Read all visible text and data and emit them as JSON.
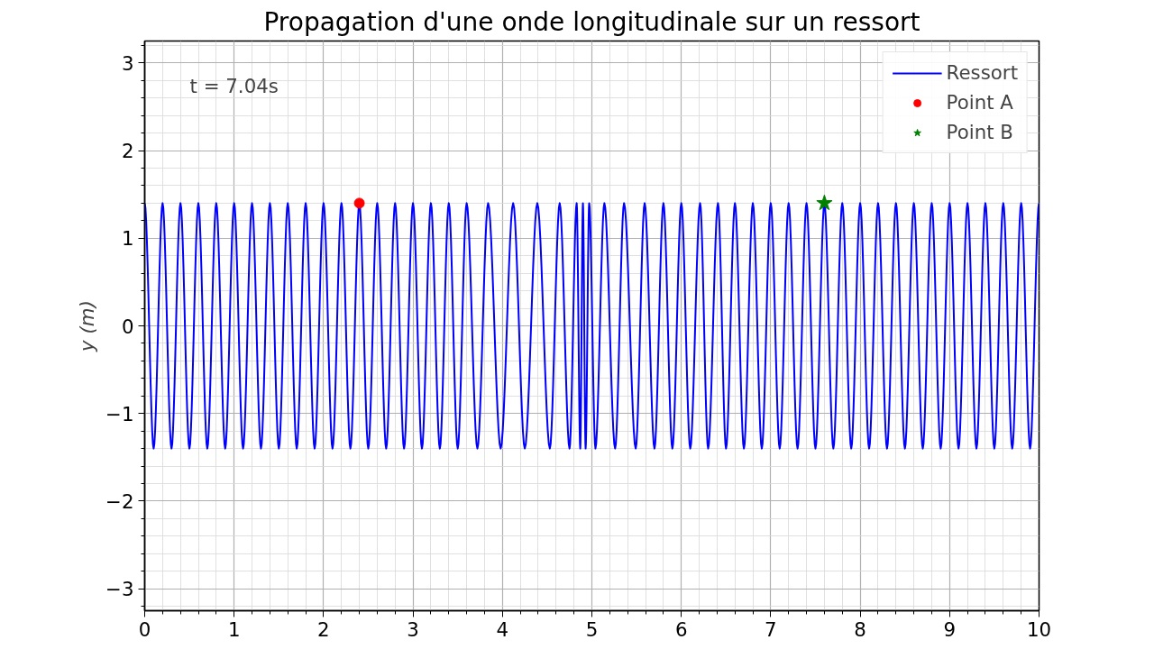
{
  "chart_data": {
    "type": "line",
    "title": "Propagation d'une onde longitudinale sur un ressort",
    "ylabel": "y (m)",
    "annotations": [
      "t = 7.04s"
    ],
    "xlim": [
      0,
      10
    ],
    "ylim": [
      -3.25,
      3.25
    ],
    "xticks": [
      0,
      1,
      2,
      3,
      4,
      5,
      6,
      7,
      8,
      9,
      10
    ],
    "yticks": [
      {
        "value": -3,
        "label": "−3"
      },
      {
        "value": -2,
        "label": "−2"
      },
      {
        "value": -1,
        "label": "−1"
      },
      0,
      1,
      2,
      3
    ],
    "grid": true,
    "legend": "top right",
    "series": [
      {
        "name": "Ressort",
        "color": "#0000ff",
        "marker": "none",
        "line_style": "solid",
        "x": [
          0,
          0.1,
          0.2,
          0.3,
          0.4,
          0.5,
          0.6,
          0.7,
          0.8,
          0.9,
          1.0,
          1.1,
          1.2,
          1.3,
          1.4,
          1.5,
          1.6,
          1.7,
          1.8,
          1.9,
          2.0,
          2.1,
          2.2,
          2.3,
          2.4,
          2.5,
          2.6,
          2.7,
          2.8,
          2.9,
          3.0,
          3.1,
          3.2,
          3.3,
          3.4,
          3.5,
          3.6,
          3.72,
          3.84,
          3.98,
          4.12,
          4.25,
          4.39,
          4.53,
          4.64,
          4.75,
          4.83,
          4.87,
          4.9,
          4.93,
          4.97,
          5.04,
          5.14,
          5.26,
          5.36,
          5.49,
          5.59,
          5.7,
          5.8,
          5.9,
          6.0,
          6.1,
          6.21,
          6.3,
          6.41,
          6.5,
          6.6,
          6.7,
          6.8,
          6.9,
          7.0,
          7.1,
          7.2,
          7.3,
          7.4,
          7.5,
          7.6,
          7.7,
          7.8,
          7.9,
          8.0,
          8.1,
          8.2,
          8.3,
          8.4,
          8.5,
          8.6,
          8.7,
          8.8,
          8.9,
          9.0,
          9.1,
          9.2,
          9.3,
          9.4,
          9.5,
          9.6,
          9.7,
          9.8,
          9.9,
          10.0
        ],
        "values": [
          1.4,
          -1.4,
          1.4,
          -1.4,
          1.4,
          -1.4,
          1.4,
          -1.4,
          1.4,
          -1.4,
          1.4,
          -1.4,
          1.4,
          -1.4,
          1.4,
          -1.4,
          1.4,
          -1.4,
          1.4,
          -1.4,
          1.4,
          -1.4,
          1.4,
          -1.4,
          1.4,
          -1.4,
          1.4,
          -1.4,
          1.4,
          -1.4,
          1.4,
          -1.4,
          1.4,
          -1.4,
          1.4,
          -1.4,
          1.4,
          -1.4,
          1.4,
          -1.4,
          1.4,
          -1.4,
          1.4,
          -1.4,
          1.4,
          -1.4,
          1.4,
          -1.4,
          1.4,
          -1.4,
          1.4,
          -1.4,
          1.4,
          -1.4,
          1.4,
          -1.4,
          1.4,
          -1.4,
          1.4,
          -1.4,
          1.4,
          -1.4,
          1.4,
          -1.4,
          1.4,
          -1.4,
          1.4,
          -1.4,
          1.4,
          -1.4,
          1.4,
          -1.4,
          1.4,
          -1.4,
          1.4,
          -1.4,
          1.4,
          -1.4,
          1.4,
          -1.4,
          1.4,
          -1.4,
          1.4,
          -1.4,
          1.4,
          -1.4,
          1.4,
          -1.4,
          1.4,
          -1.4,
          1.4,
          -1.4,
          1.4,
          -1.4,
          1.4,
          -1.4,
          1.4,
          -1.4,
          1.4,
          -1.4,
          1.4
        ]
      },
      {
        "name": "Point A",
        "type": "scatter",
        "color": "#ff0000",
        "marker": "circle",
        "x": [
          2.4
        ],
        "values": [
          1.4
        ]
      },
      {
        "name": "Point B",
        "type": "scatter",
        "color": "#008000",
        "marker": "star",
        "x": [
          7.6
        ],
        "values": [
          1.4
        ]
      }
    ]
  }
}
